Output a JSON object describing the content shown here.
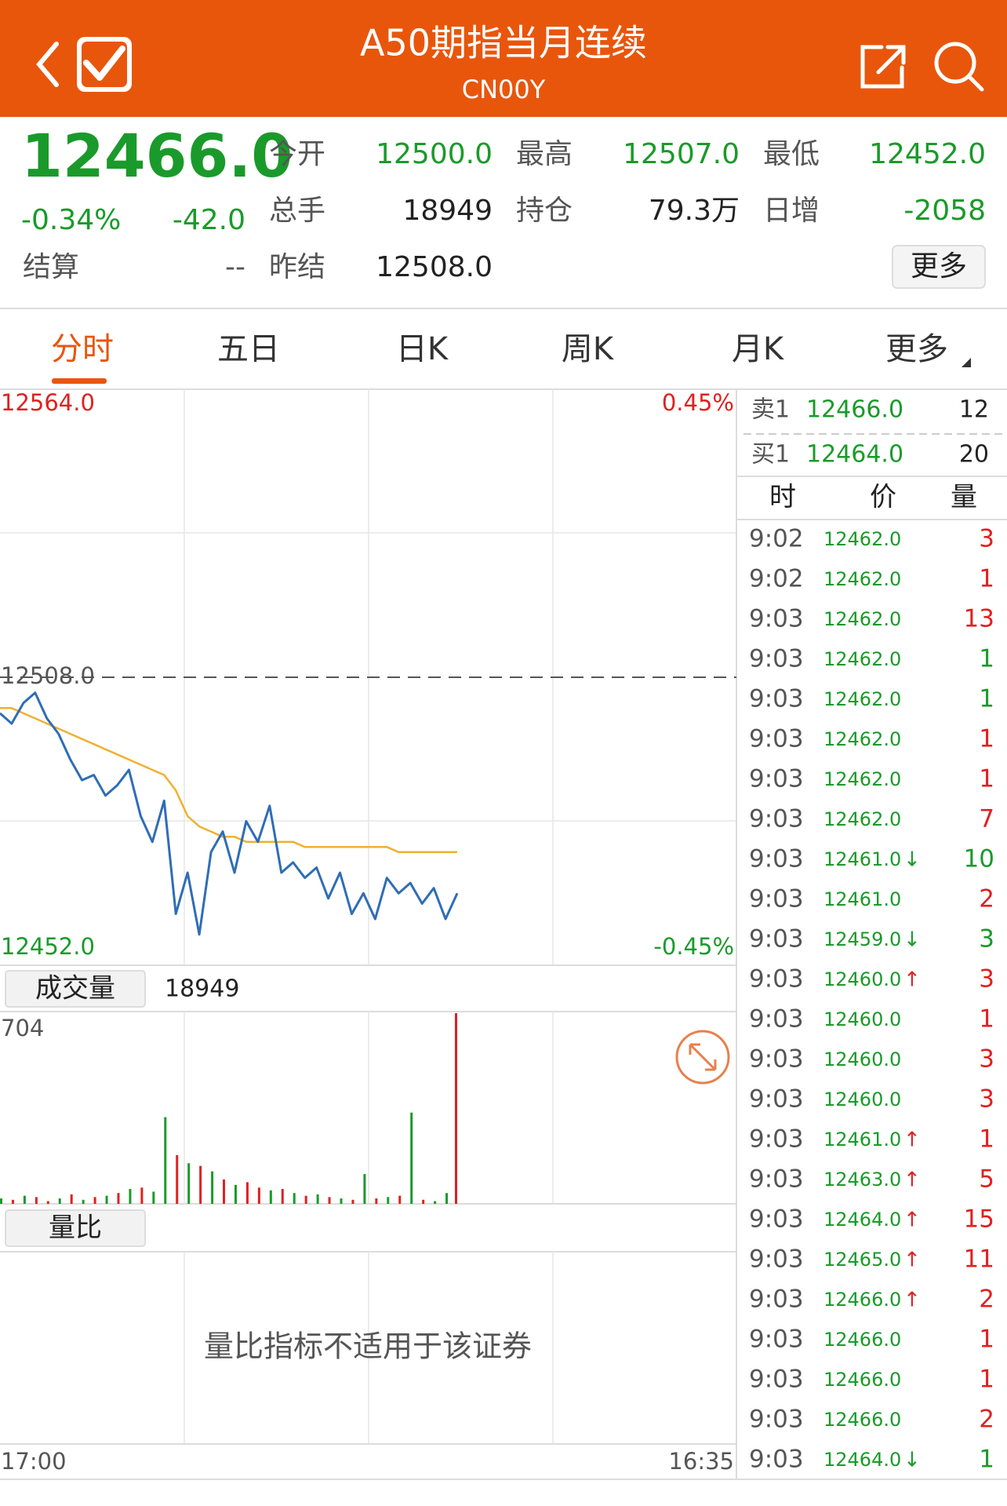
{
  "header": {
    "title": "A50期指当月连续",
    "subtitle": "CN00Y"
  },
  "quote": {
    "price": "12466.0",
    "change_pct": "-0.34%",
    "change": "-42.0",
    "settle_label": "结算",
    "settle_value": "--",
    "items": [
      {
        "label": "今开",
        "value": "12500.0",
        "color": "#1a9a2a"
      },
      {
        "label": "最高",
        "value": "12507.0",
        "color": "#1a9a2a"
      },
      {
        "label": "最低",
        "value": "12452.0",
        "color": "#1a9a2a"
      },
      {
        "label": "总手",
        "value": "18949",
        "color": "#222222"
      },
      {
        "label": "持仓",
        "value": "79.3万",
        "color": "#222222"
      },
      {
        "label": "日增",
        "value": "-2058",
        "color": "#1a9a2a"
      },
      {
        "label": "昨结",
        "value": "12508.0",
        "color": "#222222"
      }
    ],
    "more": "更多"
  },
  "tabs": [
    "分时",
    "五日",
    "日K",
    "周K",
    "月K",
    "更多"
  ],
  "chart_data": [
    {
      "type": "line",
      "ylim": [
        12452,
        12564
      ],
      "yticks": [
        {
          "value": 12564,
          "label": "12564.0"
        },
        {
          "value": 12508,
          "label": "12508.0"
        },
        {
          "value": 12452,
          "label": "12452.0"
        }
      ],
      "y2lim": [
        -0.45,
        0.45
      ],
      "y2ticks": [
        {
          "value": 0.45,
          "label": "0.45%"
        },
        {
          "value": -0.45,
          "label": "-0.45%"
        }
      ],
      "time_labels": [
        "17:00",
        "16:35"
      ],
      "series": [
        {
          "color": "#2f6db5",
          "values": [
            12501,
            12499,
            12503,
            12505,
            12500,
            12497,
            12492,
            12488,
            12489,
            12485,
            12487,
            12490,
            12481,
            12476,
            12484,
            12462,
            12470,
            12458,
            12474,
            12478,
            12470,
            12480,
            12476,
            12483,
            12470,
            12472,
            12469,
            12471,
            12465,
            12470,
            12462,
            12466,
            12461,
            12469,
            12466,
            12468,
            12464,
            12467,
            12461,
            12466
          ]
        },
        {
          "color": "#f0b030",
          "values": [
            12502,
            12502,
            12501,
            12500,
            12499,
            12498,
            12497,
            12496,
            12495,
            12494,
            12493,
            12492,
            12491,
            12490,
            12489,
            12486,
            12481,
            12479,
            12478,
            12477,
            12477,
            12476,
            12476,
            12476,
            12476,
            12476,
            12475,
            12475,
            12475,
            12475,
            12475,
            12475,
            12475,
            12475,
            12474,
            12474,
            12474,
            12474,
            12474,
            12474
          ]
        }
      ]
    },
    {
      "type": "bar",
      "title": "成交量",
      "total": 18949,
      "ylim": [
        0,
        704
      ],
      "yticks": [
        704
      ],
      "values": [
        20,
        15,
        30,
        25,
        10,
        20,
        35,
        15,
        25,
        30,
        40,
        55,
        60,
        45,
        320,
        180,
        150,
        140,
        120,
        90,
        70,
        80,
        60,
        50,
        55,
        40,
        30,
        35,
        25,
        20,
        15,
        110,
        20,
        25,
        30,
        337,
        15,
        10,
        40,
        704
      ],
      "colors": [
        "#1a9a2a",
        "#e02020",
        "#1a9a2a",
        "#e02020",
        "#e02020",
        "#1a9a2a",
        "#e02020",
        "#1a9a2a",
        "#e02020",
        "#1a9a2a",
        "#e02020",
        "#1a9a2a",
        "#e02020",
        "#1a9a2a",
        "#1a9a2a",
        "#e02020",
        "#1a9a2a",
        "#e02020",
        "#1a9a2a",
        "#e02020",
        "#1a9a2a",
        "#e02020",
        "#e02020",
        "#1a9a2a",
        "#e02020",
        "#1a9a2a",
        "#e02020",
        "#1a9a2a",
        "#e02020",
        "#1a9a2a",
        "#e02020",
        "#1a9a2a",
        "#e02020",
        "#1a9a2a",
        "#e02020",
        "#1a9a2a",
        "#e02020",
        "#1a9a2a",
        "#1a9a2a",
        "#e02020"
      ]
    }
  ],
  "ratio_panel": {
    "button": "量比",
    "message": "量比指标不适用于该证券"
  },
  "order_book": [
    {
      "label": "卖1",
      "price": "12466.0",
      "qty": "12"
    },
    {
      "label": "买1",
      "price": "12464.0",
      "qty": "20"
    }
  ],
  "trades": {
    "headers": [
      "时",
      "价",
      "量"
    ],
    "rows": [
      {
        "time": "9:02",
        "price": "12462.0",
        "arrow": "",
        "qty": "3",
        "color": "#e02020"
      },
      {
        "time": "9:02",
        "price": "12462.0",
        "arrow": "",
        "qty": "1",
        "color": "#e02020"
      },
      {
        "time": "9:03",
        "price": "12462.0",
        "arrow": "",
        "qty": "13",
        "color": "#e02020"
      },
      {
        "time": "9:03",
        "price": "12462.0",
        "arrow": "",
        "qty": "1",
        "color": "#1a9a2a"
      },
      {
        "time": "9:03",
        "price": "12462.0",
        "arrow": "",
        "qty": "1",
        "color": "#1a9a2a"
      },
      {
        "time": "9:03",
        "price": "12462.0",
        "arrow": "",
        "qty": "1",
        "color": "#e02020"
      },
      {
        "time": "9:03",
        "price": "12462.0",
        "arrow": "",
        "qty": "1",
        "color": "#e02020"
      },
      {
        "time": "9:03",
        "price": "12462.0",
        "arrow": "",
        "qty": "7",
        "color": "#e02020"
      },
      {
        "time": "9:03",
        "price": "12461.0",
        "arrow": "↓",
        "qty": "10",
        "color": "#1a9a2a"
      },
      {
        "time": "9:03",
        "price": "12461.0",
        "arrow": "",
        "qty": "2",
        "color": "#e02020"
      },
      {
        "time": "9:03",
        "price": "12459.0",
        "arrow": "↓",
        "qty": "3",
        "color": "#1a9a2a"
      },
      {
        "time": "9:03",
        "price": "12460.0",
        "arrow": "↑",
        "qty": "3",
        "color": "#e02020"
      },
      {
        "time": "9:03",
        "price": "12460.0",
        "arrow": "",
        "qty": "1",
        "color": "#e02020"
      },
      {
        "time": "9:03",
        "price": "12460.0",
        "arrow": "",
        "qty": "3",
        "color": "#e02020"
      },
      {
        "time": "9:03",
        "price": "12460.0",
        "arrow": "",
        "qty": "3",
        "color": "#e02020"
      },
      {
        "time": "9:03",
        "price": "12461.0",
        "arrow": "↑",
        "qty": "1",
        "color": "#e02020"
      },
      {
        "time": "9:03",
        "price": "12463.0",
        "arrow": "↑",
        "qty": "5",
        "color": "#e02020"
      },
      {
        "time": "9:03",
        "price": "12464.0",
        "arrow": "↑",
        "qty": "15",
        "color": "#e02020"
      },
      {
        "time": "9:03",
        "price": "12465.0",
        "arrow": "↑",
        "qty": "11",
        "color": "#e02020"
      },
      {
        "time": "9:03",
        "price": "12466.0",
        "arrow": "↑",
        "qty": "2",
        "color": "#e02020"
      },
      {
        "time": "9:03",
        "price": "12466.0",
        "arrow": "",
        "qty": "1",
        "color": "#e02020"
      },
      {
        "time": "9:03",
        "price": "12466.0",
        "arrow": "",
        "qty": "1",
        "color": "#e02020"
      },
      {
        "time": "9:03",
        "price": "12466.0",
        "arrow": "",
        "qty": "2",
        "color": "#e02020"
      },
      {
        "time": "9:03",
        "price": "12464.0",
        "arrow": "↓",
        "qty": "1",
        "color": "#1a9a2a"
      }
    ]
  }
}
